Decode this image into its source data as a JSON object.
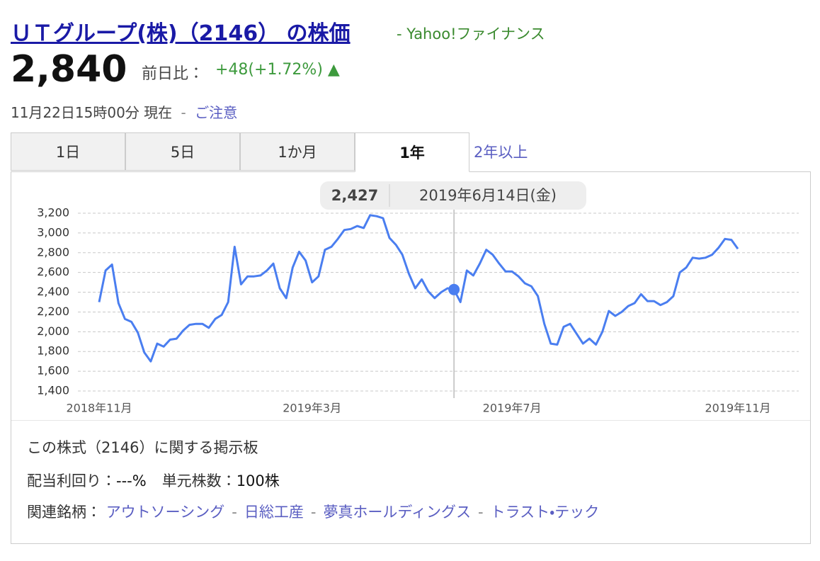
{
  "header": {
    "title": "ＵＴグループ(株)（2146） の株価",
    "site": "- Yahoo!ファイナンス",
    "price": "2,840",
    "change_label": "前日比：",
    "change": "+48(+1.72%) ▲",
    "time": "11月22日15時00分 現在",
    "separator": "-",
    "notice": "ご注意"
  },
  "tabs": {
    "items": [
      "1日",
      "5日",
      "1か月",
      "1年",
      "2年以上"
    ],
    "active": "1年"
  },
  "chart_data": {
    "type": "line",
    "color": "#4a7ef0",
    "grid": true,
    "categories": [
      "2018年11月",
      null,
      null,
      null,
      null,
      null,
      null,
      null,
      null,
      null,
      null,
      null,
      null,
      null,
      null,
      null,
      null,
      null,
      null,
      null,
      null,
      null,
      null,
      null,
      null,
      null,
      null,
      null,
      null,
      null,
      null,
      null,
      null,
      "2019年3月",
      null,
      null,
      null,
      null,
      null,
      null,
      null,
      null,
      null,
      null,
      null,
      null,
      null,
      null,
      null,
      null,
      null,
      null,
      null,
      null,
      null,
      null,
      null,
      null,
      null,
      null,
      null,
      null,
      null,
      null,
      "2019年7月",
      null,
      null,
      null,
      null,
      null,
      null,
      null,
      null,
      null,
      null,
      null,
      null,
      null,
      null,
      null,
      null,
      null,
      null,
      null,
      null,
      null,
      null,
      null,
      null,
      null,
      null,
      null,
      null,
      null,
      null,
      null,
      null,
      null,
      null,
      "2019年11月"
    ],
    "values": [
      2300,
      2620,
      2680,
      2290,
      2130,
      2100,
      1990,
      1790,
      1700,
      1880,
      1850,
      1920,
      1930,
      2010,
      2070,
      2080,
      2080,
      2040,
      2130,
      2170,
      2300,
      2860,
      2480,
      2560,
      2560,
      2570,
      2620,
      2690,
      2440,
      2340,
      2650,
      2810,
      2720,
      2500,
      2560,
      2830,
      2860,
      2940,
      3030,
      3040,
      3070,
      3050,
      3180,
      3170,
      3150,
      2950,
      2880,
      2780,
      2590,
      2440,
      2530,
      2410,
      2340,
      2400,
      2440,
      2427,
      2300,
      2620,
      2570,
      2690,
      2830,
      2780,
      2690,
      2610,
      2610,
      2560,
      2490,
      2460,
      2360,
      2080,
      1880,
      1870,
      2050,
      2080,
      1980,
      1880,
      1930,
      1870,
      2000,
      2210,
      2160,
      2200,
      2260,
      2290,
      2380,
      2310,
      2310,
      2270,
      2300,
      2360,
      2600,
      2650,
      2750,
      2740,
      2750,
      2780,
      2850,
      2940,
      2930,
      2840
    ],
    "ylim": [
      1400,
      3200
    ],
    "yticks": [
      {
        "value": 1400,
        "label": "1,400"
      },
      {
        "value": 1600,
        "label": "1,600"
      },
      {
        "value": 1800,
        "label": "1,800"
      },
      {
        "value": 2000,
        "label": "2,000"
      },
      {
        "value": 2200,
        "label": "2,200"
      },
      {
        "value": 2400,
        "label": "2,400"
      },
      {
        "value": 2600,
        "label": "2,600"
      },
      {
        "value": 2800,
        "label": "2,800"
      },
      {
        "value": 3000,
        "label": "3,000"
      },
      {
        "value": 3200,
        "label": "3,200"
      }
    ],
    "tooltip": {
      "label": "2,427",
      "date": "2019年6月14日(金)"
    }
  },
  "board": "この株式（2146）に関する掲示板",
  "stats": {
    "yield_label": "配当利回り：",
    "yield": "---%",
    "unit_label": "単元株数：",
    "unit": "100株"
  },
  "related": {
    "label": "関連銘柄：",
    "items": [
      "アウトソーシング",
      "日総工産",
      "夢真ホールディングス",
      "トラスト・テック"
    ]
  }
}
